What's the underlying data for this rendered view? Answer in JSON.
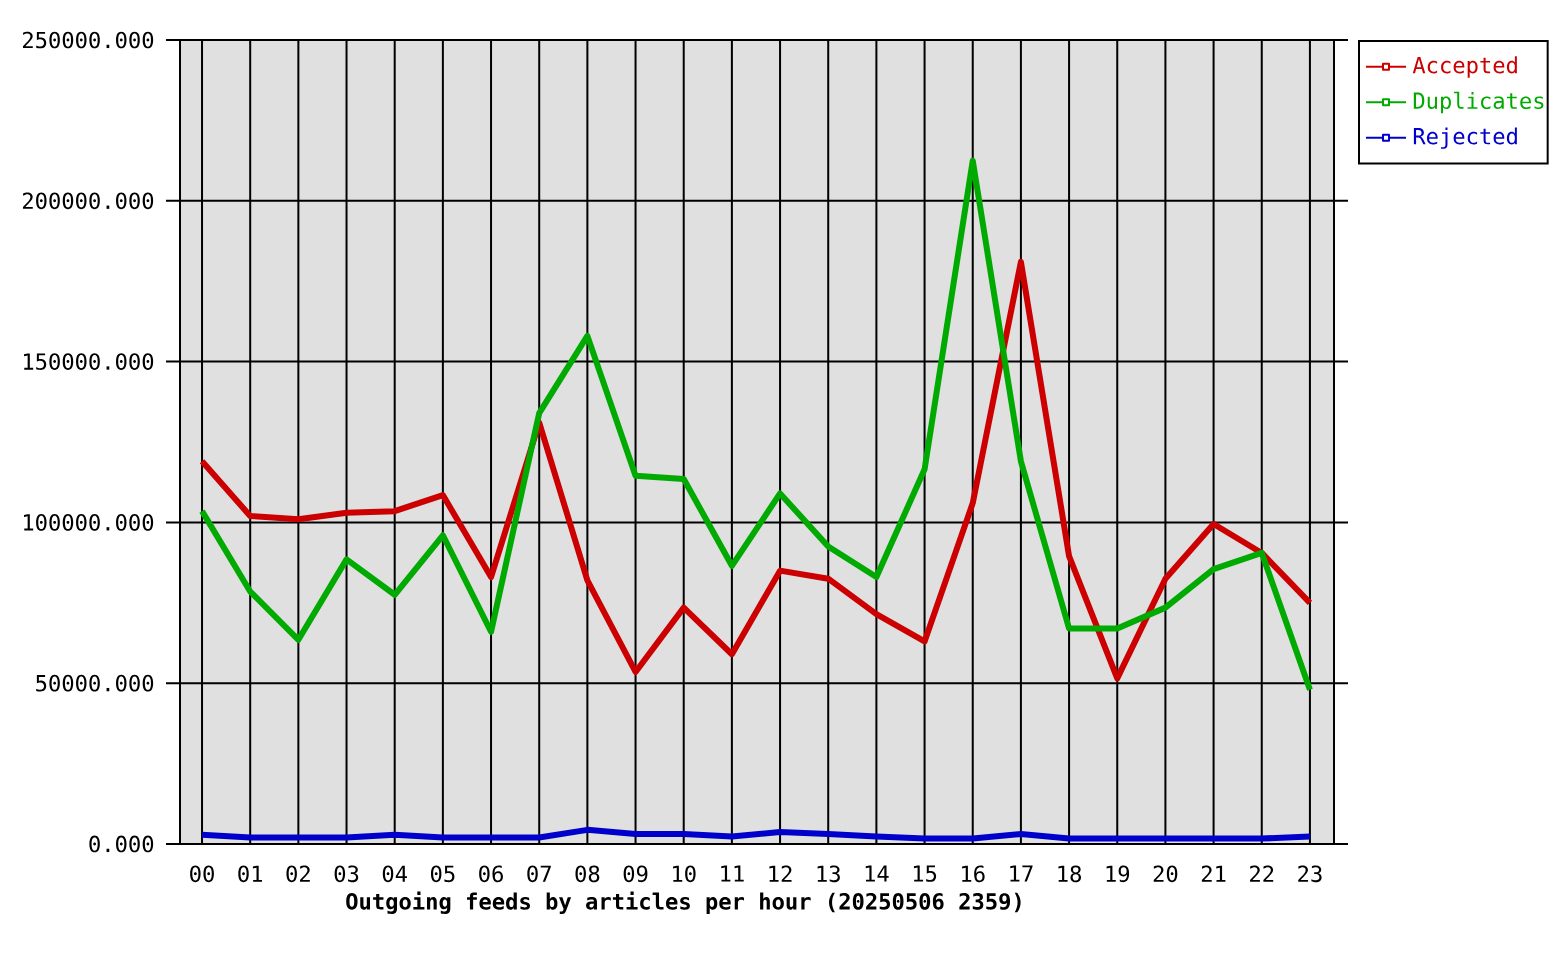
{
  "chart_data": {
    "type": "line",
    "xlabel": "Outgoing feeds by articles per hour (20250506 2359)",
    "categories": [
      "00",
      "01",
      "02",
      "03",
      "04",
      "05",
      "06",
      "07",
      "08",
      "09",
      "10",
      "11",
      "12",
      "13",
      "14",
      "15",
      "16",
      "17",
      "18",
      "19",
      "20",
      "21",
      "22",
      "23"
    ],
    "series": [
      {
        "name": "Accepted",
        "color": "#cc0000",
        "values": [
          119000,
          102000,
          101000,
          103000,
          103500,
          108500,
          83000,
          131000,
          82000,
          53500,
          73500,
          59000,
          85000,
          82500,
          71500,
          63000,
          106000,
          181000,
          89500,
          51500,
          82500,
          99500,
          90500,
          75000
        ]
      },
      {
        "name": "Duplicates",
        "color": "#00aa00",
        "values": [
          103500,
          78500,
          63500,
          88500,
          77500,
          96000,
          66000,
          134000,
          158000,
          114500,
          113500,
          86500,
          109000,
          92500,
          83000,
          116500,
          212500,
          119000,
          67000,
          67000,
          73500,
          85500,
          90500,
          48000
        ]
      },
      {
        "name": "Rejected",
        "color": "#0000cc",
        "values": [
          2900,
          2000,
          2000,
          2000,
          2900,
          2000,
          2000,
          2000,
          4400,
          3100,
          3100,
          2300,
          3700,
          3100,
          2300,
          1700,
          1700,
          3100,
          1700,
          1700,
          1700,
          1700,
          1700,
          2300
        ]
      }
    ],
    "ylim": [
      0,
      250000
    ],
    "yticks": [
      {
        "value": 0,
        "label": "0.000"
      },
      {
        "value": 50000,
        "label": "50000.000"
      },
      {
        "value": 100000,
        "label": "100000.000"
      },
      {
        "value": 150000,
        "label": "150000.000"
      },
      {
        "value": 200000,
        "label": "200000.000"
      },
      {
        "value": 250000,
        "label": "250000.000"
      }
    ],
    "grid": true,
    "legend": "top right"
  }
}
